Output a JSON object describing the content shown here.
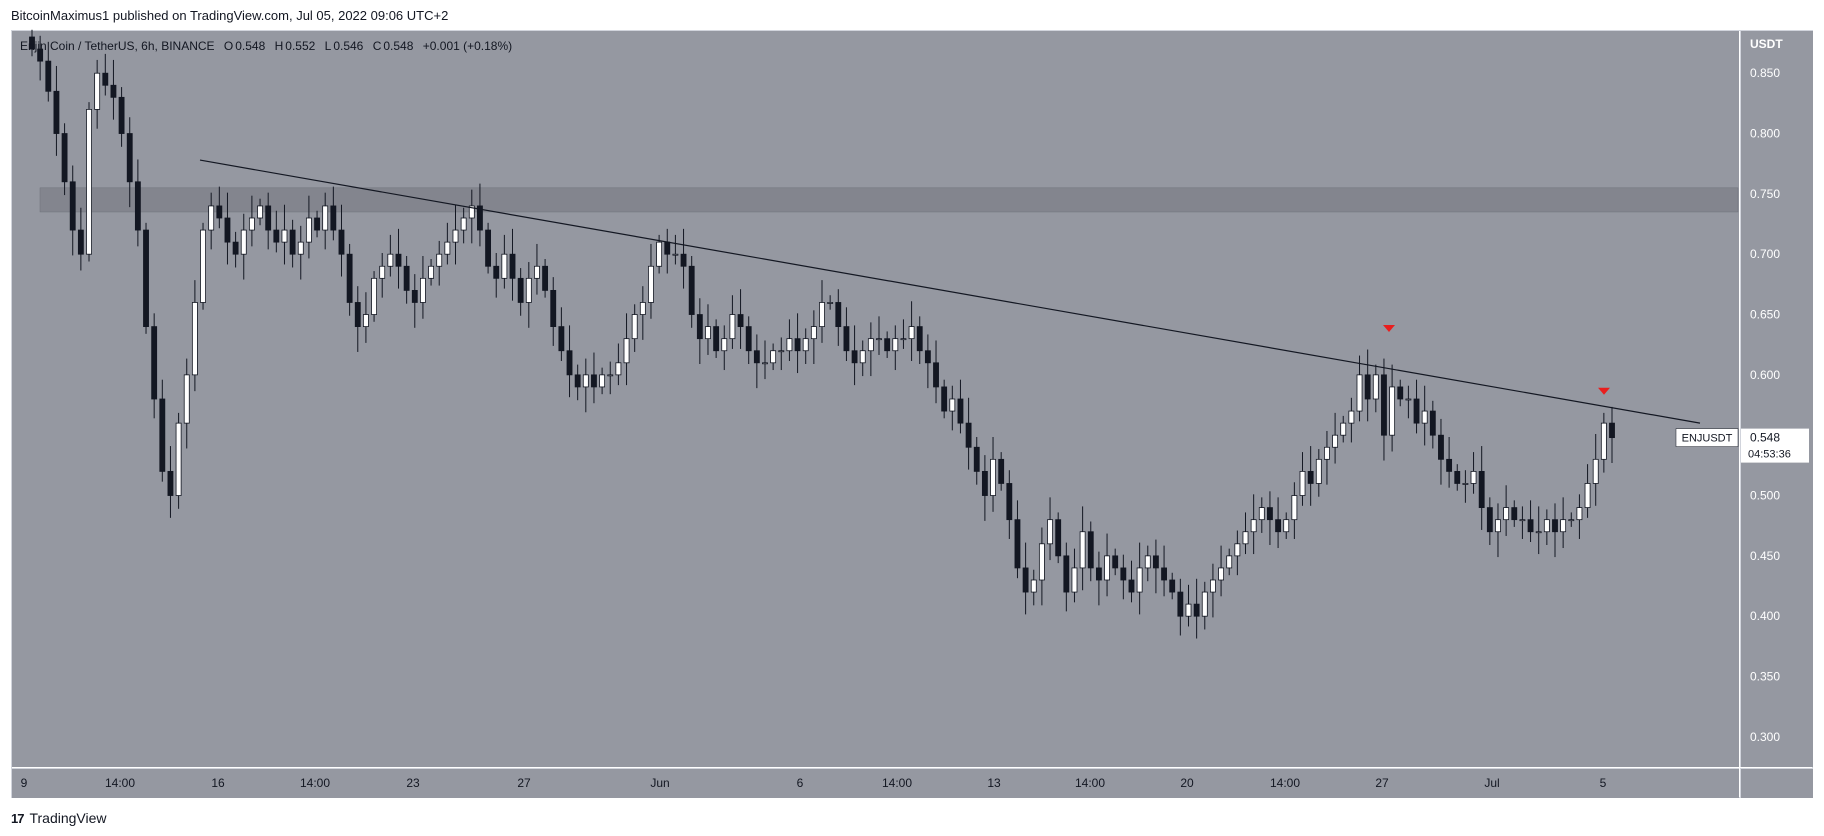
{
  "header": {
    "published_by": "BitcoinMaximus1 published on TradingView.com, Jul 05, 2022 09:06 UTC+2"
  },
  "legend": {
    "symbol": "Enjin Coin / TetherUS, 6h, BINANCE",
    "o_label": "O",
    "o_val": "0.548",
    "h_label": "H",
    "h_val": "0.552",
    "l_label": "L",
    "l_val": "0.546",
    "c_label": "C",
    "c_val": "0.548",
    "change": "+0.001 (+0.18%)"
  },
  "price_axis": {
    "currency": "USDT",
    "ticks": [
      "0.850",
      "0.800",
      "0.750",
      "0.700",
      "0.650",
      "0.600",
      "0.550",
      "0.500",
      "0.450",
      "0.400",
      "0.350",
      "0.300"
    ]
  },
  "price_tag": {
    "symbol": "ENJUSDT",
    "price": "0.548",
    "countdown": "04:53:36"
  },
  "footer": {
    "brand": "TradingView"
  },
  "colors": {
    "plot_bg": "#9598a1",
    "up_candle": "#ffffff",
    "down_candle": "#131722",
    "trendline": "#131722",
    "resistance_zone": "#7e818a",
    "marker": "#e91e1e"
  },
  "chart_data": {
    "type": "candlestick",
    "symbol": "ENJUSDT",
    "interval": "6h",
    "x_ticks": [
      "9",
      "14:00",
      "16",
      "14:00",
      "23",
      "27",
      "Jun",
      "6",
      "14:00",
      "13",
      "14:00",
      "20",
      "14:00",
      "27",
      "Jul",
      "5"
    ],
    "ylim": [
      0.28,
      0.88
    ],
    "closes": [
      0.87,
      0.86,
      0.835,
      0.8,
      0.76,
      0.72,
      0.7,
      0.82,
      0.85,
      0.84,
      0.83,
      0.8,
      0.76,
      0.72,
      0.64,
      0.58,
      0.52,
      0.5,
      0.56,
      0.6,
      0.66,
      0.72,
      0.74,
      0.73,
      0.71,
      0.7,
      0.72,
      0.73,
      0.74,
      0.72,
      0.71,
      0.72,
      0.7,
      0.71,
      0.73,
      0.72,
      0.74,
      0.72,
      0.7,
      0.66,
      0.64,
      0.65,
      0.68,
      0.69,
      0.7,
      0.69,
      0.67,
      0.66,
      0.68,
      0.69,
      0.7,
      0.71,
      0.72,
      0.73,
      0.74,
      0.72,
      0.69,
      0.68,
      0.7,
      0.68,
      0.66,
      0.68,
      0.69,
      0.67,
      0.64,
      0.62,
      0.6,
      0.59,
      0.6,
      0.59,
      0.6,
      0.6,
      0.61,
      0.63,
      0.65,
      0.66,
      0.69,
      0.71,
      0.7,
      0.7,
      0.69,
      0.65,
      0.63,
      0.64,
      0.62,
      0.63,
      0.65,
      0.64,
      0.62,
      0.61,
      0.61,
      0.62,
      0.62,
      0.63,
      0.62,
      0.63,
      0.64,
      0.66,
      0.66,
      0.64,
      0.62,
      0.61,
      0.62,
      0.63,
      0.63,
      0.62,
      0.63,
      0.63,
      0.64,
      0.62,
      0.61,
      0.59,
      0.57,
      0.58,
      0.56,
      0.54,
      0.52,
      0.5,
      0.53,
      0.51,
      0.48,
      0.44,
      0.42,
      0.43,
      0.46,
      0.48,
      0.45,
      0.42,
      0.44,
      0.47,
      0.44,
      0.43,
      0.45,
      0.44,
      0.43,
      0.42,
      0.44,
      0.45,
      0.44,
      0.43,
      0.42,
      0.4,
      0.41,
      0.4,
      0.42,
      0.43,
      0.44,
      0.45,
      0.46,
      0.47,
      0.48,
      0.49,
      0.48,
      0.47,
      0.48,
      0.5,
      0.52,
      0.51,
      0.53,
      0.54,
      0.55,
      0.56,
      0.57,
      0.6,
      0.58,
      0.6,
      0.55,
      0.59,
      0.58,
      0.58,
      0.56,
      0.57,
      0.55,
      0.53,
      0.52,
      0.51,
      0.51,
      0.52,
      0.49,
      0.47,
      0.48,
      0.49,
      0.48,
      0.48,
      0.47,
      0.47,
      0.48,
      0.47,
      0.48,
      0.48,
      0.49,
      0.51,
      0.53,
      0.56,
      0.548
    ],
    "trendline": {
      "from_price": 0.778,
      "to_price": 0.56,
      "label": ""
    },
    "resistance_zone": [
      0.735,
      0.755
    ],
    "markers": [
      {
        "price": 0.638,
        "shape": "triangle-down"
      },
      {
        "price": 0.586,
        "shape": "triangle-down"
      }
    ],
    "title": "",
    "xlabel": "",
    "ylabel": "",
    "grid": false
  }
}
